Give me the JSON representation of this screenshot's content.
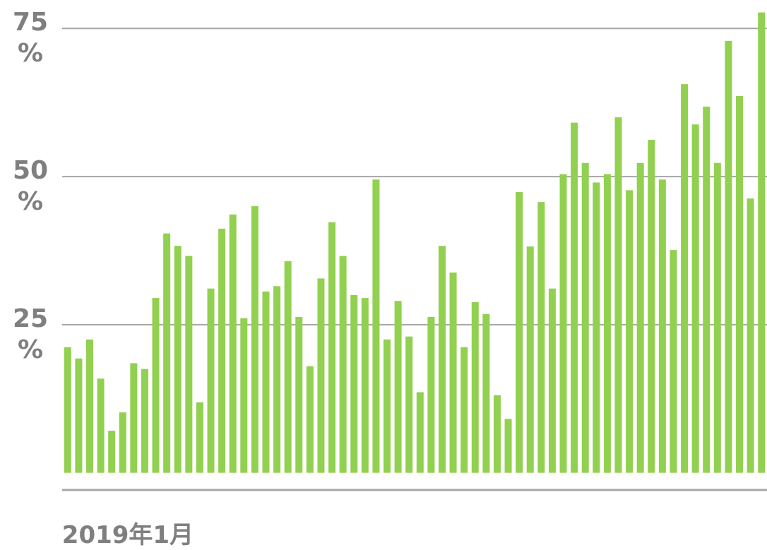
{
  "chart_data": {
    "type": "bar",
    "color": "#92d050",
    "categories": [
      "2019年1月",
      null,
      null,
      null,
      null,
      null,
      null,
      null,
      null,
      null,
      null,
      null,
      null,
      null,
      null,
      null,
      null,
      null,
      null,
      null,
      null,
      null,
      null,
      null,
      null,
      null,
      null,
      null,
      null,
      null,
      null,
      null,
      null,
      null,
      null,
      null,
      null,
      null,
      null,
      null,
      null,
      null,
      null,
      null,
      null,
      null,
      null,
      null,
      null,
      null,
      null,
      null,
      null,
      null,
      null,
      null,
      null,
      null,
      null,
      null,
      null,
      null,
      null,
      null
    ],
    "values": [
      21.2,
      19.3,
      22.5,
      15.9,
      7.1,
      10.2,
      18.5,
      17.5,
      29.5,
      40.4,
      38.3,
      36.6,
      11.9,
      31.1,
      41.2,
      43.6,
      26.1,
      45.0,
      30.6,
      31.5,
      35.7,
      26.3,
      18.0,
      32.8,
      42.3,
      36.6,
      30.0,
      29.5,
      49.5,
      22.5,
      29.0,
      23.0,
      13.6,
      26.3,
      38.3,
      33.8,
      21.2,
      28.8,
      26.8,
      13.1,
      9.1,
      47.4,
      38.2,
      45.7,
      31.1,
      50.4,
      59.1,
      52.3,
      49.0,
      50.4,
      60.0,
      47.7,
      52.3,
      56.2,
      49.5,
      37.6,
      65.6,
      58.8,
      61.8,
      52.3,
      72.9,
      63.6,
      46.3,
      77.7
    ],
    "ylim": [
      -2.9,
      79.8
    ],
    "yticks": [
      {
        "value": 25,
        "label": "25 %"
      },
      {
        "value": 50,
        "label": "50 %"
      },
      {
        "value": 75,
        "label": "75 %"
      }
    ],
    "grid": true
  }
}
